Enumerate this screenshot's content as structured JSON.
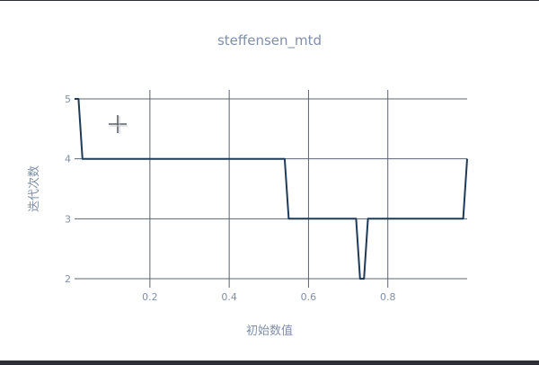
{
  "chart_data": {
    "type": "line",
    "title": "steffensen_mtd",
    "xlabel": "初始数值",
    "ylabel": "迭代次数",
    "xlim": [
      0.01,
      1.0
    ],
    "ylim": [
      1.85,
      5.15
    ],
    "grid": true,
    "x_ticks": [
      0.2,
      0.4,
      0.6,
      0.8
    ],
    "x_tick_labels": [
      "0.2",
      "0.4",
      "0.6",
      "0.8"
    ],
    "y_ticks": [
      2,
      3,
      4,
      5
    ],
    "y_tick_labels": [
      "2",
      "3",
      "4",
      "5"
    ],
    "line_color": "#1f3b57",
    "series": [
      {
        "x": [
          0.01,
          0.02,
          0.03,
          0.54,
          0.55,
          0.72,
          0.73,
          0.74,
          0.75,
          0.99,
          1.0
        ],
        "y": [
          5,
          5,
          4,
          4,
          3,
          3,
          2,
          2,
          3,
          3,
          4
        ]
      }
    ]
  },
  "ui": {
    "cursor_icon": "crosshair-icon"
  }
}
